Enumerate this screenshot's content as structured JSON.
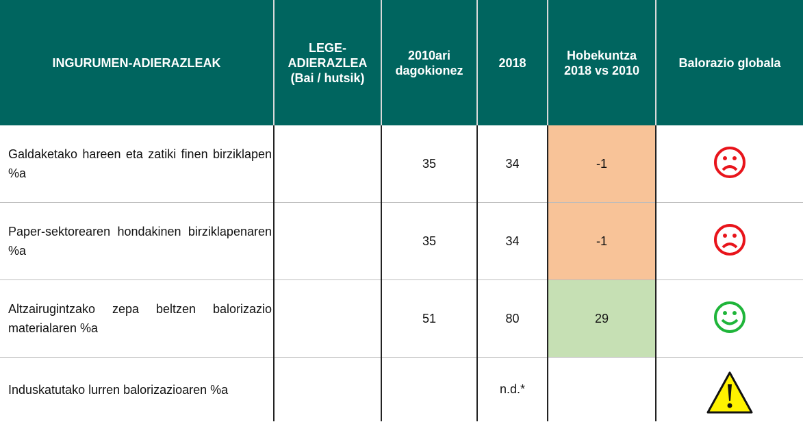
{
  "table": {
    "header": [
      "INGURUMEN-ADIERAZLEAK",
      "LEGE-\nADIERAZLEA\n(Bai / hutsik)",
      "2010ari\ndagokionez",
      "2018",
      "Hobekuntza\n2018 vs 2010",
      "Balorazio globala"
    ],
    "rows": [
      {
        "indicator": " Galdaketako hareen eta zatiki finen birziklapen %a",
        "y2010": 35,
        "y2018": 34,
        "improvement": -1
      },
      {
        "indicator": " Paper-sektorearen hondakinen birziklapenaren %a",
        "y2010": 35,
        "y2018": 34,
        "improvement": -1
      },
      {
        "indicator": "Altzairugintzako zepa beltzen balorizazio materialaren %a",
        "y2010": 51,
        "y2018": 80,
        "improvement": 29
      },
      {
        "indicator": "Induskatutako lurren balorizazioaren %a",
        "y2018": "n.d.*"
      }
    ]
  }
}
